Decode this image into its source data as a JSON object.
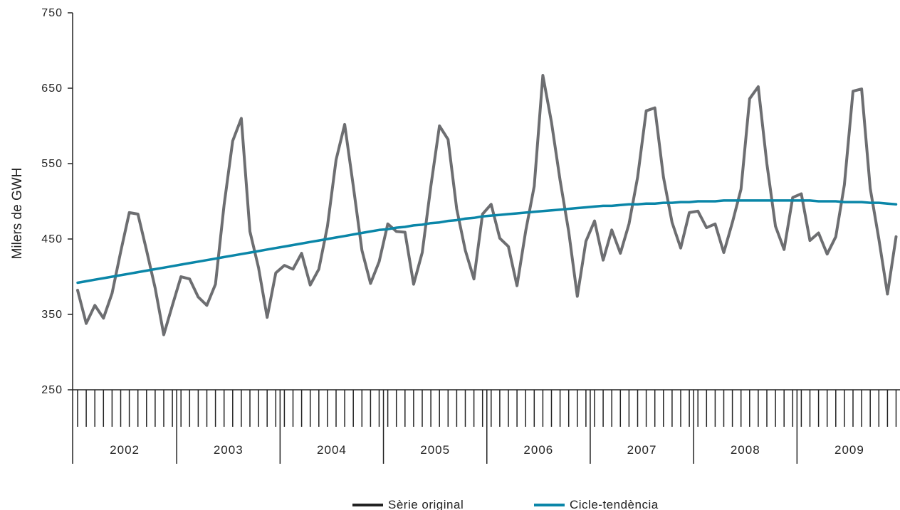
{
  "chart_data": {
    "type": "line",
    "title": "",
    "xlabel": "",
    "ylabel": "Milers de GWH",
    "ylim": [
      250,
      750
    ],
    "yticks": [
      250,
      350,
      450,
      550,
      650,
      750
    ],
    "years": [
      "2002",
      "2003",
      "2004",
      "2005",
      "2006",
      "2007",
      "2008",
      "2009"
    ],
    "months_per_year": 12,
    "grid": false,
    "legend_position": "bottom-center",
    "series": [
      {
        "name": "Sèrie original",
        "color": "#6d6e71",
        "values": [
          382,
          338,
          362,
          345,
          378,
          433,
          485,
          483,
          435,
          385,
          323,
          362,
          400,
          397,
          373,
          362,
          390,
          495,
          580,
          610,
          460,
          412,
          346,
          405,
          415,
          410,
          431,
          389,
          410,
          467,
          555,
          602,
          520,
          435,
          391,
          420,
          470,
          460,
          459,
          390,
          432,
          520,
          600,
          582,
          490,
          435,
          397,
          483,
          496,
          451,
          440,
          388,
          460,
          520,
          667,
          605,
          528,
          460,
          374,
          447,
          474,
          422,
          462,
          431,
          470,
          532,
          620,
          624,
          532,
          472,
          438,
          485,
          487,
          465,
          470,
          432,
          472,
          516,
          636,
          652,
          550,
          467,
          436,
          505,
          510,
          448,
          458,
          430,
          453,
          522,
          646,
          649,
          517,
          450,
          377,
          453
        ]
      },
      {
        "name": "Cicle-tendència",
        "color": "#0a86a8",
        "values": [
          392,
          394,
          396,
          398,
          400,
          402,
          404,
          406,
          408,
          410,
          412,
          414,
          416,
          418,
          420,
          422,
          424,
          426,
          428,
          430,
          432,
          434,
          436,
          438,
          440,
          442,
          444,
          446,
          448,
          450,
          452,
          454,
          456,
          458,
          460,
          462,
          463,
          465,
          466,
          468,
          469,
          471,
          472,
          474,
          475,
          477,
          478,
          480,
          481,
          482,
          483,
          484,
          485,
          486,
          487,
          488,
          489,
          490,
          491,
          492,
          493,
          494,
          494,
          495,
          496,
          496,
          497,
          497,
          498,
          498,
          499,
          499,
          500,
          500,
          500,
          501,
          501,
          501,
          501,
          501,
          501,
          501,
          501,
          501,
          501,
          501,
          500,
          500,
          500,
          499,
          499,
          499,
          498,
          498,
          497,
          496
        ]
      }
    ]
  }
}
